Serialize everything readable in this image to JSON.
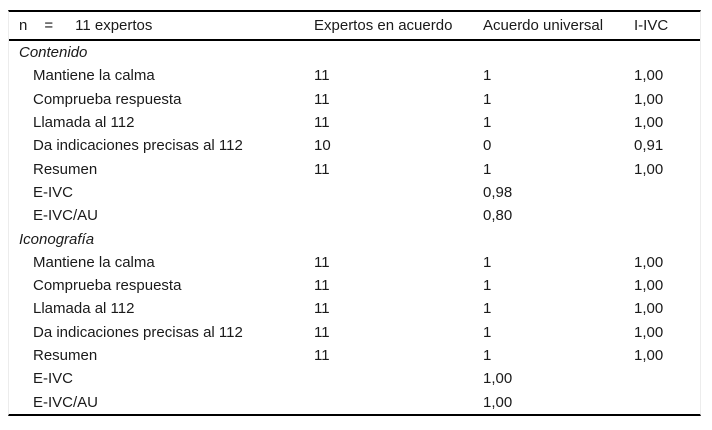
{
  "page": {
    "background": "#ffffff",
    "text_color": "#1a1a1a",
    "rule_color": "#000000",
    "edge_guide_color": "#ececec"
  },
  "table": {
    "header": {
      "n_label": "n",
      "equals": "=",
      "n_value": "11 expertos",
      "col2": "Expertos en acuerdo",
      "col3": "Acuerdo universal",
      "col4": "I-IVC"
    },
    "sections": [
      {
        "title": "Contenido",
        "rows": [
          {
            "label": "Mantiene la calma",
            "expertos": "11",
            "acuerdo": "1",
            "ivc": "1,00"
          },
          {
            "label": "Comprueba respuesta",
            "expertos": "11",
            "acuerdo": "1",
            "ivc": "1,00"
          },
          {
            "label": "Llamada al 112",
            "expertos": "11",
            "acuerdo": "1",
            "ivc": "1,00"
          },
          {
            "label": "Da indicaciones precisas al 112",
            "expertos": "10",
            "acuerdo": "0",
            "ivc": "0,91"
          },
          {
            "label": "Resumen",
            "expertos": "11",
            "acuerdo": "1",
            "ivc": "1,00"
          },
          {
            "label": "E-IVC",
            "expertos": "",
            "acuerdo": "0,98",
            "ivc": ""
          },
          {
            "label": "E-IVC/AU",
            "expertos": "",
            "acuerdo": "0,80",
            "ivc": ""
          }
        ]
      },
      {
        "title": "Iconografía",
        "rows": [
          {
            "label": "Mantiene la calma",
            "expertos": "11",
            "acuerdo": "1",
            "ivc": "1,00"
          },
          {
            "label": "Comprueba respuesta",
            "expertos": "11",
            "acuerdo": "1",
            "ivc": "1,00"
          },
          {
            "label": "Llamada al 112",
            "expertos": "11",
            "acuerdo": "1",
            "ivc": "1,00"
          },
          {
            "label": "Da indicaciones precisas al 112",
            "expertos": "11",
            "acuerdo": "1",
            "ivc": "1,00"
          },
          {
            "label": "Resumen",
            "expertos": "11",
            "acuerdo": "1",
            "ivc": "1,00"
          },
          {
            "label": "E-IVC",
            "expertos": "",
            "acuerdo": "1,00",
            "ivc": ""
          },
          {
            "label": "E-IVC/AU",
            "expertos": "",
            "acuerdo": "1,00",
            "ivc": ""
          }
        ]
      }
    ]
  }
}
